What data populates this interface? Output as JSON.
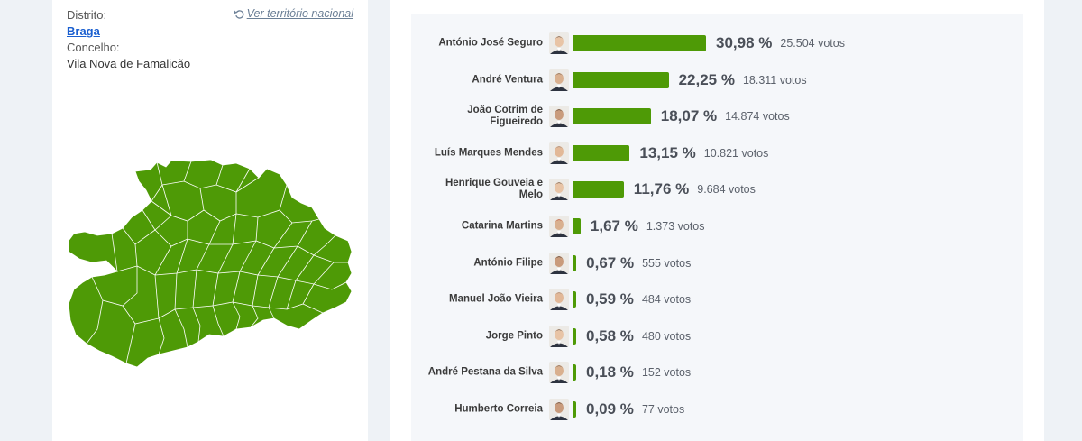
{
  "location": {
    "distrito_label": "Distrito:",
    "distrito_value": "Braga",
    "concelho_label": "Concelho:",
    "concelho_value": "Vila Nova de Famalicão",
    "national_link": "Ver território nacional",
    "national_icon": "undo-icon"
  },
  "map": {
    "fill_color": "#4e9a06",
    "border_color": "#ffffff"
  },
  "results": {
    "bar_color": "#4e9a06",
    "candidates": [
      {
        "name": "António José Seguro",
        "pct": "30,98 %",
        "votes": "25.504 votos",
        "value": 30.98
      },
      {
        "name": "André Ventura",
        "pct": "22,25 %",
        "votes": "18.311 votos",
        "value": 22.25
      },
      {
        "name": "João Cotrim de Figueiredo",
        "pct": "18,07 %",
        "votes": "14.874 votos",
        "value": 18.07
      },
      {
        "name": "Luís Marques Mendes",
        "pct": "13,15 %",
        "votes": "10.821 votos",
        "value": 13.15
      },
      {
        "name": "Henrique Gouveia e Melo",
        "pct": "11,76 %",
        "votes": "9.684 votos",
        "value": 11.76
      },
      {
        "name": "Catarina Martins",
        "pct": "1,67 %",
        "votes": "1.373 votos",
        "value": 1.67
      },
      {
        "name": "António Filipe",
        "pct": "0,67 %",
        "votes": "555 votos",
        "value": 0.67
      },
      {
        "name": "Manuel João Vieira",
        "pct": "0,59 %",
        "votes": "484 votos",
        "value": 0.59
      },
      {
        "name": "Jorge Pinto",
        "pct": "0,58 %",
        "votes": "480 votos",
        "value": 0.58
      },
      {
        "name": "André Pestana da Silva",
        "pct": "0,18 %",
        "votes": "152 votos",
        "value": 0.18
      },
      {
        "name": "Humberto Correia",
        "pct": "0,09 %",
        "votes": "77 votos",
        "value": 0.09
      }
    ]
  }
}
